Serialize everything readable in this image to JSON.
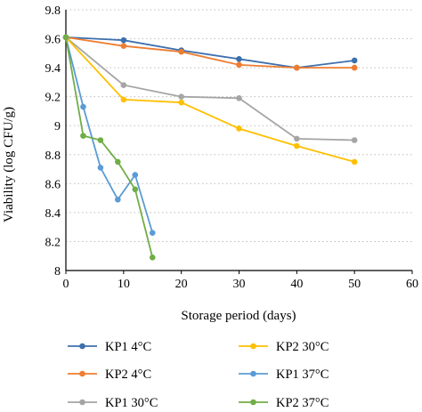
{
  "chart_data": {
    "type": "line",
    "xlabel": "Storage period (days)",
    "ylabel": "Viability  (log CFU/g)",
    "xlim": [
      0,
      60
    ],
    "ylim": [
      8,
      9.8
    ],
    "xticks": [
      "0",
      "10",
      "20",
      "30",
      "40",
      "50",
      "60"
    ],
    "yticks": [
      "8",
      "8.2",
      "8.4",
      "8.6",
      "8.8",
      "9",
      "9.2",
      "9.4",
      "9.6",
      "9.8"
    ],
    "grid": "horizontal dotted",
    "legend_position": "bottom",
    "series": [
      {
        "name": "KP1 4°C",
        "color": "#3c6fad",
        "x": [
          0,
          10,
          20,
          30,
          40,
          50
        ],
        "y": [
          9.61,
          9.59,
          9.52,
          9.46,
          9.4,
          9.45
        ]
      },
      {
        "name": "KP2 4°C",
        "color": "#ee7d31",
        "x": [
          0,
          10,
          20,
          30,
          40,
          50
        ],
        "y": [
          9.61,
          9.55,
          9.51,
          9.42,
          9.4,
          9.4
        ]
      },
      {
        "name": "KP1 30°C",
        "color": "#a5a5a5",
        "x": [
          0,
          10,
          20,
          30,
          40,
          50
        ],
        "y": [
          9.61,
          9.28,
          9.2,
          9.19,
          8.91,
          8.9
        ]
      },
      {
        "name": "KP2 30°C",
        "color": "#fec000",
        "x": [
          0,
          10,
          20,
          30,
          40,
          50
        ],
        "y": [
          9.61,
          9.18,
          9.16,
          8.98,
          8.86,
          8.75
        ]
      },
      {
        "name": "KP1 37°C",
        "color": "#5b9bd5",
        "x": [
          0,
          3,
          6,
          9,
          12,
          15
        ],
        "y": [
          9.61,
          9.13,
          8.71,
          8.49,
          8.66,
          8.26
        ]
      },
      {
        "name": "KP2 37°C",
        "color": "#70ad47",
        "x": [
          0,
          3,
          6,
          9,
          12,
          15
        ],
        "y": [
          9.61,
          8.93,
          8.9,
          8.75,
          8.56,
          8.09
        ]
      }
    ]
  }
}
